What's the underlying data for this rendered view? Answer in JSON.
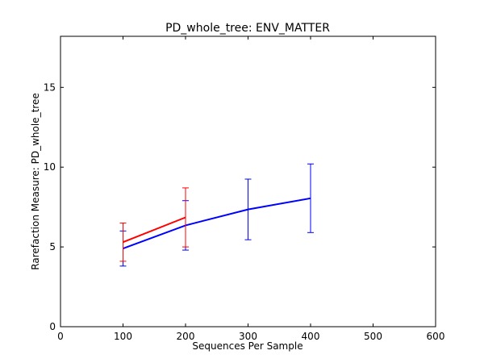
{
  "chart_data": {
    "type": "line",
    "title": "PD_whole_tree: ENV_MATTER",
    "xlabel": "Sequences Per Sample",
    "ylabel": "Rarefaction Measure: PD_whole_tree",
    "xlim": [
      0,
      600
    ],
    "ylim": [
      0,
      18.2
    ],
    "xticks": [
      0,
      100,
      200,
      300,
      400,
      500,
      600
    ],
    "yticks": [
      0,
      5,
      10,
      15
    ],
    "grid": false,
    "legend": "none",
    "series": [
      {
        "color": "#0000ff",
        "x": [
          100,
          200,
          300,
          400
        ],
        "y": [
          4.9,
          6.35,
          7.35,
          8.05
        ],
        "err": [
          1.1,
          1.55,
          1.9,
          2.15
        ]
      },
      {
        "color": "#ff0000",
        "x": [
          100,
          200
        ],
        "y": [
          5.3,
          6.85
        ],
        "err": [
          1.2,
          1.85
        ]
      }
    ]
  }
}
